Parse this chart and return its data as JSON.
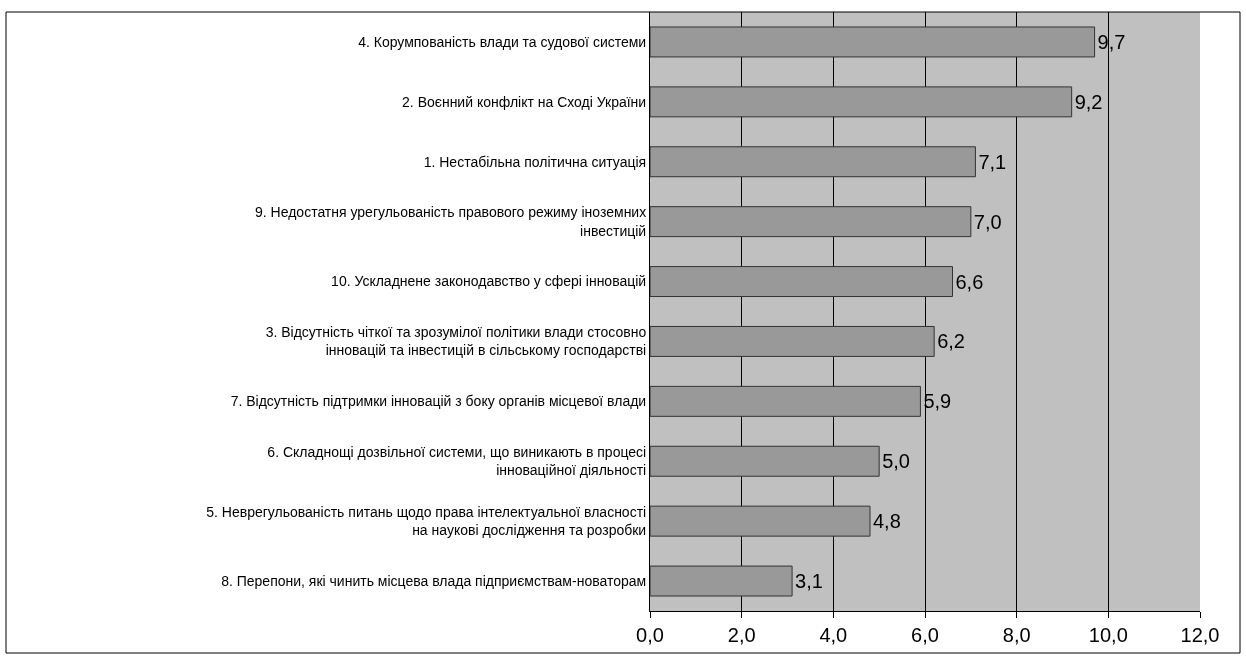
{
  "chart_data": {
    "type": "bar",
    "orientation": "horizontal",
    "categories": [
      "4. Корумпованість влади та судової системи",
      "2. Воєнний конфлікт на Сході України",
      "1. Нестабільна політична ситуація",
      "9. Недостатня урегульованість правового режиму іноземних інвестицій",
      "10. Ускладнене законодавство у сфері інновацій",
      "3. Відсутність чіткої та зрозумілої політики влади стосовно інновацій та інвестицій в сільському господарстві",
      "7. Відсутність підтримки інновацій з боку органів місцевої влади",
      "6. Складнощі дозвільної системи, що виникають в процесі інноваційної діяльності",
      "5. Неврегульованість питань щодо права інтелектуальної власності на наукові дослідження та розробки",
      "8. Перепони, які чинить місцева влада підприємствам-новаторам"
    ],
    "values": [
      9.7,
      9.2,
      7.1,
      7.0,
      6.6,
      6.2,
      5.9,
      5.0,
      4.8,
      3.1
    ],
    "color": "#999999",
    "xlim": [
      0,
      12
    ],
    "xticks": [
      {
        "value": 0,
        "label": "0,0"
      },
      {
        "value": 2,
        "label": "2,0"
      },
      {
        "value": 4,
        "label": "4,0"
      },
      {
        "value": 6,
        "label": "6,0"
      },
      {
        "value": 8,
        "label": "8,0"
      },
      {
        "value": 10,
        "label": "10,0"
      },
      {
        "value": 12,
        "label": "12,0"
      }
    ],
    "value_labels": [
      "9,7",
      "9,2",
      "7,1",
      "7,0",
      "6,6",
      "6,2",
      "5,9",
      "5,0",
      "4,8",
      "3,1"
    ],
    "grid": "x",
    "legend": false
  }
}
